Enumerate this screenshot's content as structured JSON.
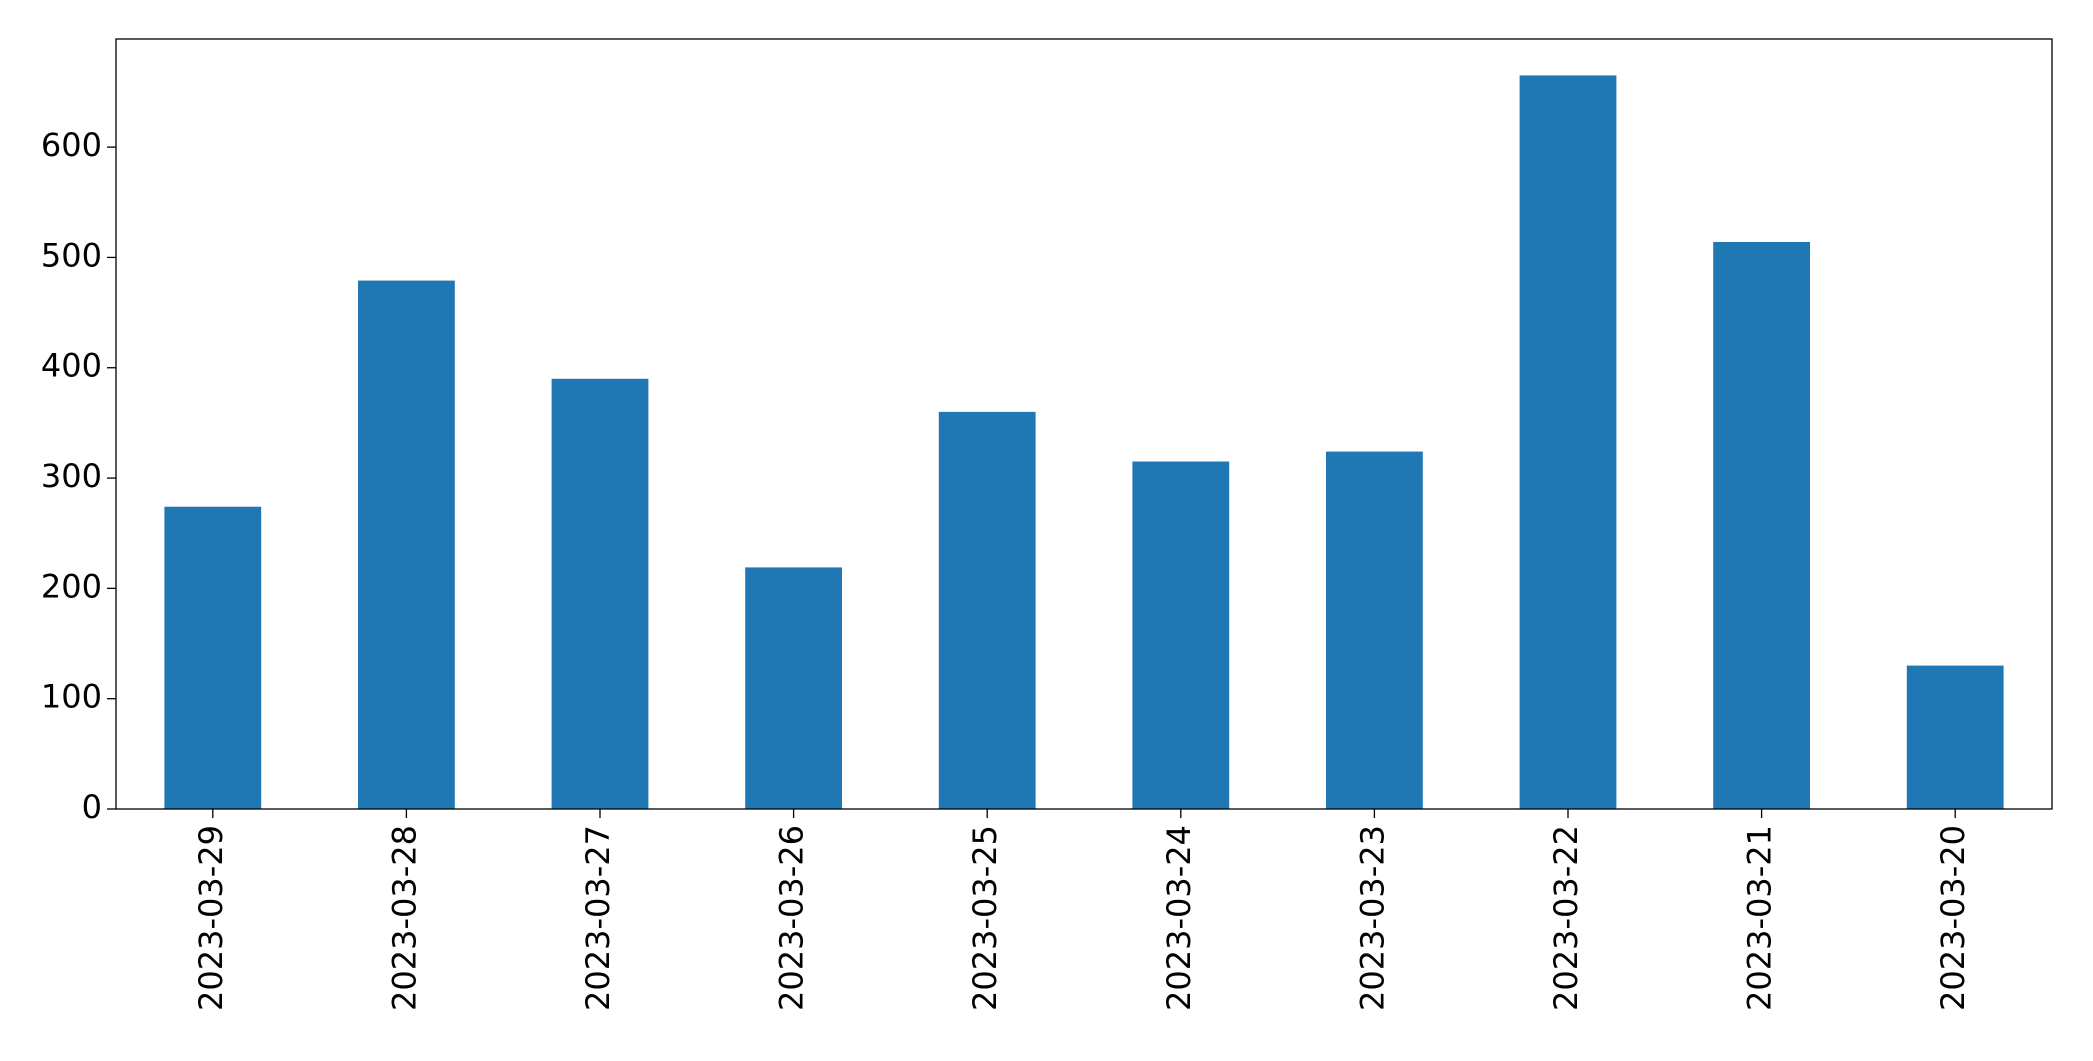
{
  "chart_data": {
    "type": "bar",
    "categories": [
      "2023-03-29",
      "2023-03-28",
      "2023-03-27",
      "2023-03-26",
      "2023-03-25",
      "2023-03-24",
      "2023-03-23",
      "2023-03-22",
      "2023-03-21",
      "2023-03-20"
    ],
    "values": [
      274,
      479,
      390,
      219,
      360,
      315,
      324,
      665,
      514,
      130
    ],
    "color": "#1f77b4",
    "ylim": [
      0,
      698
    ],
    "yticks": [
      0,
      100,
      200,
      300,
      400,
      500,
      600
    ],
    "grid": false
  }
}
